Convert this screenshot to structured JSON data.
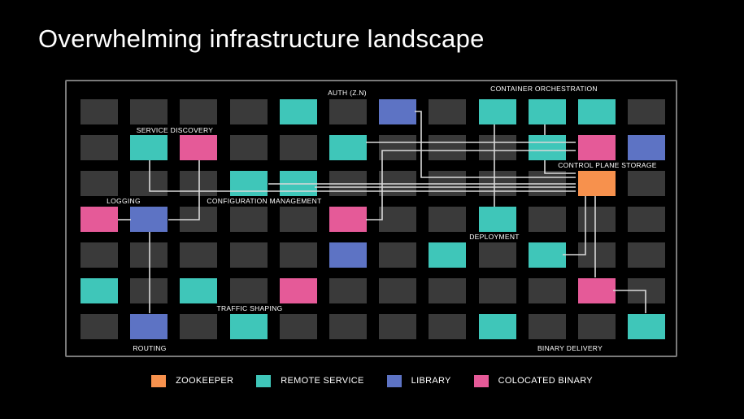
{
  "title": "Overwhelming infrastructure landscape",
  "colors": {
    "background": "#000000",
    "frame": "#7a7a7a",
    "empty": "#3a3a3a",
    "zookeeper": "#f7914d",
    "remote_service": "#3fc6b9",
    "library": "#5d73c4",
    "colocated_binary": "#e55a98",
    "link": "#d9d9d9"
  },
  "legend": [
    {
      "key": "zookeeper",
      "label": "ZOOKEEPER"
    },
    {
      "key": "remote_service",
      "label": "REMOTE SERVICE"
    },
    {
      "key": "library",
      "label": "LIBRARY"
    },
    {
      "key": "colocated_binary",
      "label": "COLOCATED BINARY"
    }
  ],
  "grid": [
    [
      "empty",
      "empty",
      "empty",
      "empty",
      "remote_service",
      "empty",
      "library",
      "empty",
      "remote_service",
      "remote_service",
      "remote_service",
      "empty"
    ],
    [
      "empty",
      "remote_service",
      "colocated_binary",
      "empty",
      "empty",
      "remote_service",
      "empty",
      "empty",
      "empty",
      "remote_service",
      "colocated_binary",
      "library"
    ],
    [
      "empty",
      "empty",
      "empty",
      "remote_service",
      "remote_service",
      "empty",
      "empty",
      "empty",
      "empty",
      "empty",
      "zookeeper",
      "empty"
    ],
    [
      "colocated_binary",
      "library",
      "empty",
      "empty",
      "empty",
      "colocated_binary",
      "empty",
      "empty",
      "remote_service",
      "empty",
      "empty",
      "empty"
    ],
    [
      "empty",
      "empty",
      "empty",
      "empty",
      "empty",
      "library",
      "empty",
      "remote_service",
      "empty",
      "remote_service",
      "empty",
      "empty"
    ],
    [
      "remote_service",
      "empty",
      "remote_service",
      "empty",
      "colocated_binary",
      "empty",
      "empty",
      "empty",
      "empty",
      "empty",
      "colocated_binary",
      "empty"
    ],
    [
      "empty",
      "library",
      "empty",
      "remote_service",
      "empty",
      "empty",
      "empty",
      "empty",
      "remote_service",
      "empty",
      "empty",
      "remote_service"
    ]
  ],
  "labels": {
    "auth": "AUTH (Z.N)",
    "container_orchestration": "CONTAINER ORCHESTRATION",
    "service_discovery": "SERVICE DISCOVERY",
    "control_plane_storage": "CONTROL  PLANE  STORAGE",
    "logging": "LOGGING",
    "configuration_management": "CONFIGURATION MANAGEMENT",
    "deployment": "DEPLOYMENT",
    "traffic_shaping": "TRAFFIC SHAPING",
    "routing": "ROUTING",
    "binary_delivery": "BINARY DELIVERY"
  }
}
